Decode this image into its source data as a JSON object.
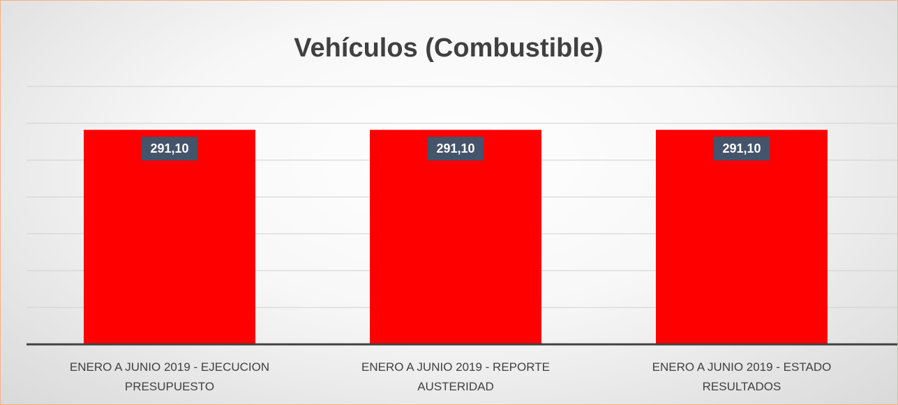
{
  "chart_data": {
    "type": "bar",
    "title": "Vehículos (Combustible)",
    "categories": [
      "ENERO A JUNIO 2019 - EJECUCION PRESUPUESTO",
      "ENERO A JUNIO 2019 - REPORTE AUSTERIDAD",
      "ENERO A JUNIO 2019 - ESTADO RESULTADOS"
    ],
    "values": [
      291.1,
      291.1,
      291.1
    ],
    "value_labels": [
      "291,10",
      "291,10",
      "291,10"
    ],
    "color": "#ff0000",
    "ylim": [
      0,
      350
    ],
    "yticks": [
      0,
      50,
      100,
      150,
      200,
      250,
      300,
      350
    ],
    "grid": true
  }
}
